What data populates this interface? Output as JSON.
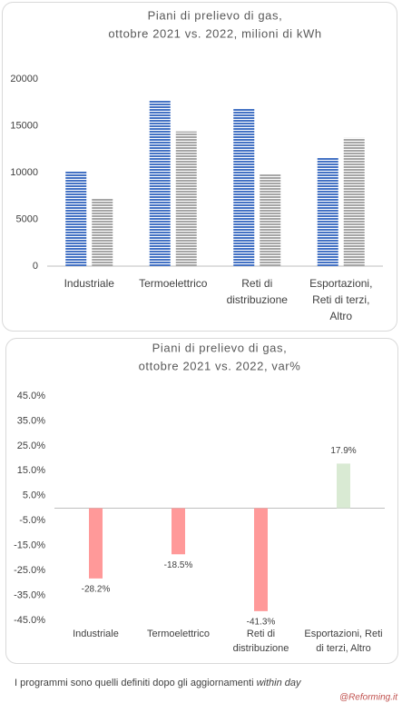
{
  "chart_data": [
    {
      "type": "grouped-bar",
      "title": [
        "Piani di prelievo di gas,",
        "ottobre 2021 vs. 2022, milioni di kWh"
      ],
      "categories": [
        [
          "Industriale"
        ],
        [
          "Termoelettrico"
        ],
        [
          "Reti di",
          "distribuzione"
        ],
        [
          "Esportazioni,",
          "Reti di terzi,",
          "Altro"
        ]
      ],
      "series": [
        {
          "color": "#4472c4",
          "values": [
            10100,
            17700,
            16800,
            11600
          ]
        },
        {
          "color": "#a5a5a5",
          "values": [
            7200,
            14400,
            9800,
            13700
          ]
        }
      ],
      "ylim": [
        0,
        20000
      ],
      "yticks": [
        0,
        5000,
        10000,
        15000,
        20000
      ],
      "grid": false
    },
    {
      "type": "bar",
      "title": [
        "Piani di prelievo di gas,",
        "ottobre 2021 vs. 2022, var%"
      ],
      "categories": [
        [
          "Industriale"
        ],
        [
          "Termoelettrico"
        ],
        [
          "Reti di",
          "distribuzione"
        ],
        [
          "Esportazioni, Reti",
          "di terzi, Altro"
        ]
      ],
      "values": [
        -28.2,
        -18.5,
        -41.3,
        17.9
      ],
      "value_labels": [
        "-28.2%",
        "-18.5%",
        "-41.3%",
        "17.9%"
      ],
      "colors": [
        "#ff9999",
        "#ff9999",
        "#ff9999",
        "#d9ead3"
      ],
      "ylim": [
        -45,
        45
      ],
      "yticks": [
        {
          "value": 45,
          "label": "45.0%"
        },
        {
          "value": 35,
          "label": "35.0%"
        },
        {
          "value": 25,
          "label": "25.0%"
        },
        {
          "value": 15,
          "label": "15.0%"
        },
        {
          "value": 5,
          "label": "5.0%"
        },
        {
          "value": -5,
          "label": "-5.0%"
        },
        {
          "value": -15,
          "label": "-15.0%"
        },
        {
          "value": -25,
          "label": "-25.0%"
        },
        {
          "value": -35,
          "label": "-35.0%"
        },
        {
          "value": -45,
          "label": "-45.0%"
        }
      ],
      "grid": false
    }
  ],
  "footnote": {
    "text": "I programmi sono quelli definiti dopo gli aggiornamenti",
    "emphasis": "within day"
  },
  "credit": "@Reforming.it"
}
